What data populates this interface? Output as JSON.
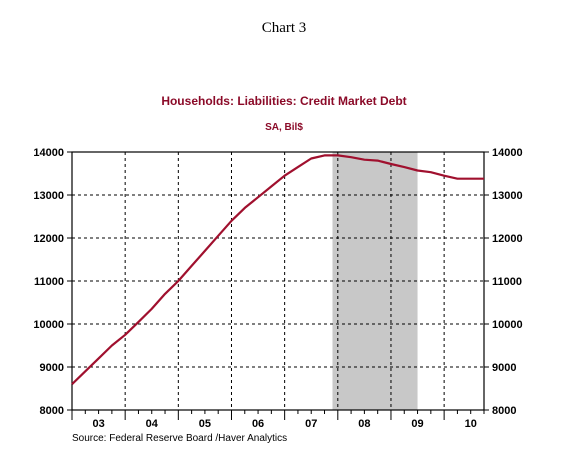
{
  "page_title": "Chart 3",
  "source": "Source:  Federal Reserve Board /Haver Analytics",
  "colors": {
    "line": "#a0102e",
    "title": "#8b0a28",
    "shading": "#c8c8c8"
  },
  "chart_data": {
    "type": "line",
    "title": "Households: Liabilities: Credit Market Debt",
    "subtitle": "SA, Bil$",
    "xlabel": "",
    "ylabel": "",
    "x_range": [
      2003.0,
      2010.75
    ],
    "ylim": [
      8000,
      14000
    ],
    "yticks": [
      8000,
      9000,
      10000,
      11000,
      12000,
      13000,
      14000
    ],
    "ytick_labels": [
      "8000",
      "9000",
      "10000",
      "11000",
      "12000",
      "13000",
      "14000"
    ],
    "xtick_labels": [
      "03",
      "04",
      "05",
      "06",
      "07",
      "08",
      "09",
      "10"
    ],
    "grid": true,
    "axis_left_and_right": true,
    "recession_shading": [
      2007.9,
      2009.5
    ],
    "series": [
      {
        "x": [
          2003.0,
          2003.25,
          2003.5,
          2003.75,
          2004.0,
          2004.25,
          2004.5,
          2004.75,
          2005.0,
          2005.25,
          2005.5,
          2005.75,
          2006.0,
          2006.25,
          2006.5,
          2006.75,
          2007.0,
          2007.25,
          2007.5,
          2007.75,
          2008.0,
          2008.25,
          2008.5,
          2008.75,
          2009.0,
          2009.25,
          2009.5,
          2009.75,
          2010.0,
          2010.25,
          2010.5,
          2010.75
        ],
        "values": [
          8600,
          8900,
          9200,
          9500,
          9750,
          10050,
          10350,
          10700,
          11000,
          11350,
          11700,
          12050,
          12400,
          12700,
          12950,
          13200,
          13450,
          13650,
          13850,
          13920,
          13920,
          13880,
          13820,
          13800,
          13720,
          13650,
          13570,
          13530,
          13450,
          13380,
          13380,
          13380
        ]
      }
    ]
  }
}
